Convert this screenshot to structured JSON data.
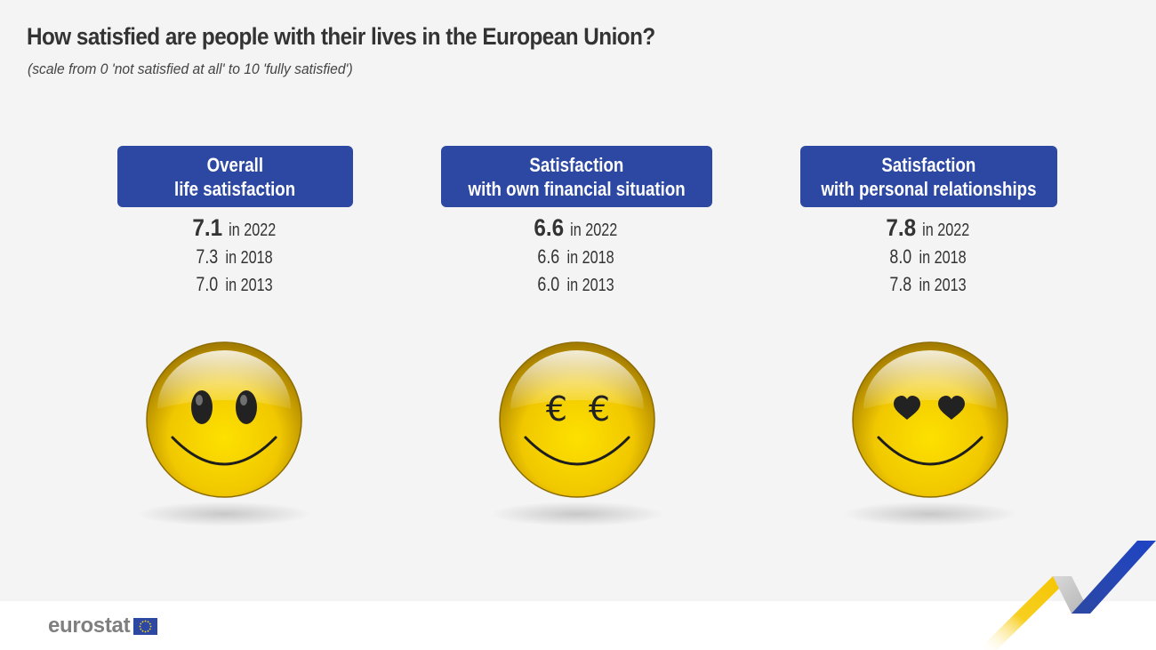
{
  "title": "How satisfied are people with their lives in the European Union?",
  "subtitle": "(scale from 0 'not satisfied at all' to 10 'fully satisfied')",
  "chart_data": {
    "type": "table",
    "title": "How satisfied are people with their lives in the European Union?",
    "subtitle": "(scale from 0 'not satisfied at all' to 10 'fully satisfied')",
    "scale": [
      0,
      10
    ],
    "years": [
      "2022",
      "2018",
      "2013"
    ],
    "series": [
      {
        "label_lines": [
          "Overall",
          "life satisfaction"
        ],
        "face_icon": "smiley-oval-eyes-icon",
        "values": [
          {
            "value": "7.1",
            "year_text": "in 2022"
          },
          {
            "value": "7.3",
            "year_text": "in 2018"
          },
          {
            "value": "7.0",
            "year_text": "in 2013"
          }
        ]
      },
      {
        "label_lines": [
          "Satisfaction",
          "with own financial situation"
        ],
        "face_icon": "smiley-euro-eyes-icon",
        "eye_glyph": "€",
        "values": [
          {
            "value": "6.6",
            "year_text": "in 2022"
          },
          {
            "value": "6.6",
            "year_text": "in 2018"
          },
          {
            "value": "6.0",
            "year_text": "in 2013"
          }
        ]
      },
      {
        "label_lines": [
          "Satisfaction",
          "with personal relationships"
        ],
        "face_icon": "smiley-heart-eyes-icon",
        "values": [
          {
            "value": "7.8",
            "year_text": "in 2022"
          },
          {
            "value": "8.0",
            "year_text": "in 2018"
          },
          {
            "value": "7.8",
            "year_text": "in 2013"
          }
        ]
      }
    ]
  },
  "brand": {
    "logo_text": "eurostat",
    "logo_icon": "eu-flag-icon",
    "corner_icon": "eurostat-chevron-icon"
  },
  "colors": {
    "label_background": "#2c48a3",
    "eu_blue": "#2c48a3",
    "eu_star": "#ffd617",
    "accent_yellow": "#f5c400",
    "logo_grey": "#7f7f7f"
  }
}
